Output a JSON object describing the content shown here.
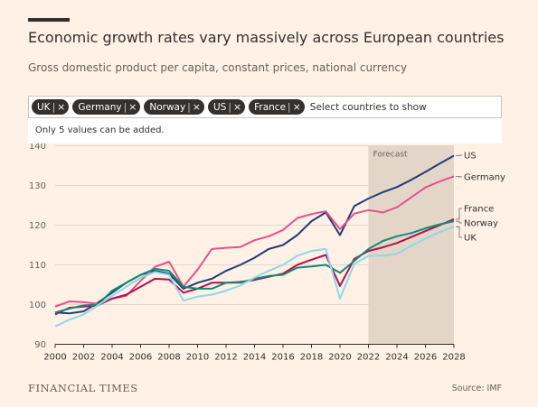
{
  "header": {
    "title": "Economic growth rates vary massively across European countries",
    "subtitle": "Gross domestic product per capita, constant prices, national currency"
  },
  "selector": {
    "chips": [
      {
        "label": "UK"
      },
      {
        "label": "Germany"
      },
      {
        "label": "Norway"
      },
      {
        "label": "US"
      },
      {
        "label": "France"
      }
    ],
    "chip_separator": "|",
    "chip_remove": "×",
    "placeholder": "Select countries to show",
    "notice": "Only 5 values can be added."
  },
  "footer": {
    "brand": "FINANCIAL TIMES",
    "source": "Source: IMF"
  },
  "chart_data": {
    "type": "line",
    "xlim": [
      2000,
      2028
    ],
    "ylim": [
      90,
      140
    ],
    "x_ticks": [
      2000,
      2002,
      2004,
      2006,
      2008,
      2010,
      2012,
      2014,
      2016,
      2018,
      2020,
      2022,
      2024,
      2026,
      2028
    ],
    "y_ticks": [
      90,
      100,
      110,
      120,
      130,
      140
    ],
    "forecast": {
      "label": "Forecast",
      "from": 2022,
      "to": 2028
    },
    "grid": "horizontal",
    "legend": "direct labels at right end of lines",
    "x": [
      2000,
      2001,
      2002,
      2003,
      2004,
      2005,
      2006,
      2007,
      2008,
      2009,
      2010,
      2011,
      2012,
      2013,
      2014,
      2015,
      2016,
      2017,
      2018,
      2019,
      2020,
      2021,
      2022,
      2023,
      2024,
      2025,
      2026,
      2027,
      2028
    ],
    "series": [
      {
        "name": "US",
        "color": "#1f3d7a",
        "values": [
          98.0,
          97.8,
          98.3,
          100.5,
          103.0,
          105.5,
          107.5,
          108.5,
          107.8,
          104.0,
          105.5,
          106.5,
          108.5,
          110.0,
          111.8,
          114.0,
          115.0,
          117.5,
          121.0,
          123.2,
          117.5,
          124.8,
          126.7,
          128.3,
          129.6,
          131.4,
          133.4,
          135.5,
          137.5
        ]
      },
      {
        "name": "Germany",
        "color": "#e9508a",
        "values": [
          99.5,
          100.8,
          100.6,
          100.2,
          101.5,
          102.2,
          106.0,
          109.5,
          110.8,
          104.5,
          108.8,
          114.0,
          114.3,
          114.5,
          116.2,
          117.2,
          118.8,
          121.8,
          122.8,
          123.5,
          119.0,
          122.9,
          123.8,
          123.2,
          124.5,
          127.0,
          129.5,
          131.0,
          132.3
        ]
      },
      {
        "name": "France",
        "color": "#b0114f",
        "values": [
          97.5,
          99.2,
          99.5,
          99.8,
          101.5,
          102.5,
          104.5,
          106.5,
          106.3,
          103.0,
          104.0,
          105.5,
          105.5,
          105.7,
          106.2,
          107.0,
          107.8,
          110.0,
          111.3,
          112.5,
          104.7,
          111.5,
          113.5,
          114.4,
          115.5,
          117.0,
          118.5,
          120.0,
          121.5
        ]
      },
      {
        "name": "Norway",
        "color": "#0f8c74",
        "values": [
          98.0,
          99.0,
          99.8,
          100.0,
          103.5,
          105.5,
          107.5,
          109.0,
          108.5,
          104.5,
          104.0,
          104.0,
          105.5,
          105.5,
          106.5,
          107.2,
          107.5,
          109.3,
          109.6,
          110.0,
          108.0,
          111.0,
          114.0,
          116.0,
          117.2,
          118.0,
          119.2,
          120.2,
          121.0
        ]
      },
      {
        "name": "UK",
        "color": "#8ed8ea",
        "values": [
          94.5,
          96.2,
          97.5,
          99.8,
          102.2,
          104.5,
          106.8,
          108.2,
          107.5,
          101.0,
          102.0,
          102.5,
          103.5,
          104.8,
          106.8,
          108.5,
          110.0,
          112.3,
          113.5,
          114.0,
          101.5,
          110.2,
          112.3,
          112.3,
          112.8,
          114.8,
          116.6,
          118.3,
          119.6
        ]
      }
    ]
  }
}
